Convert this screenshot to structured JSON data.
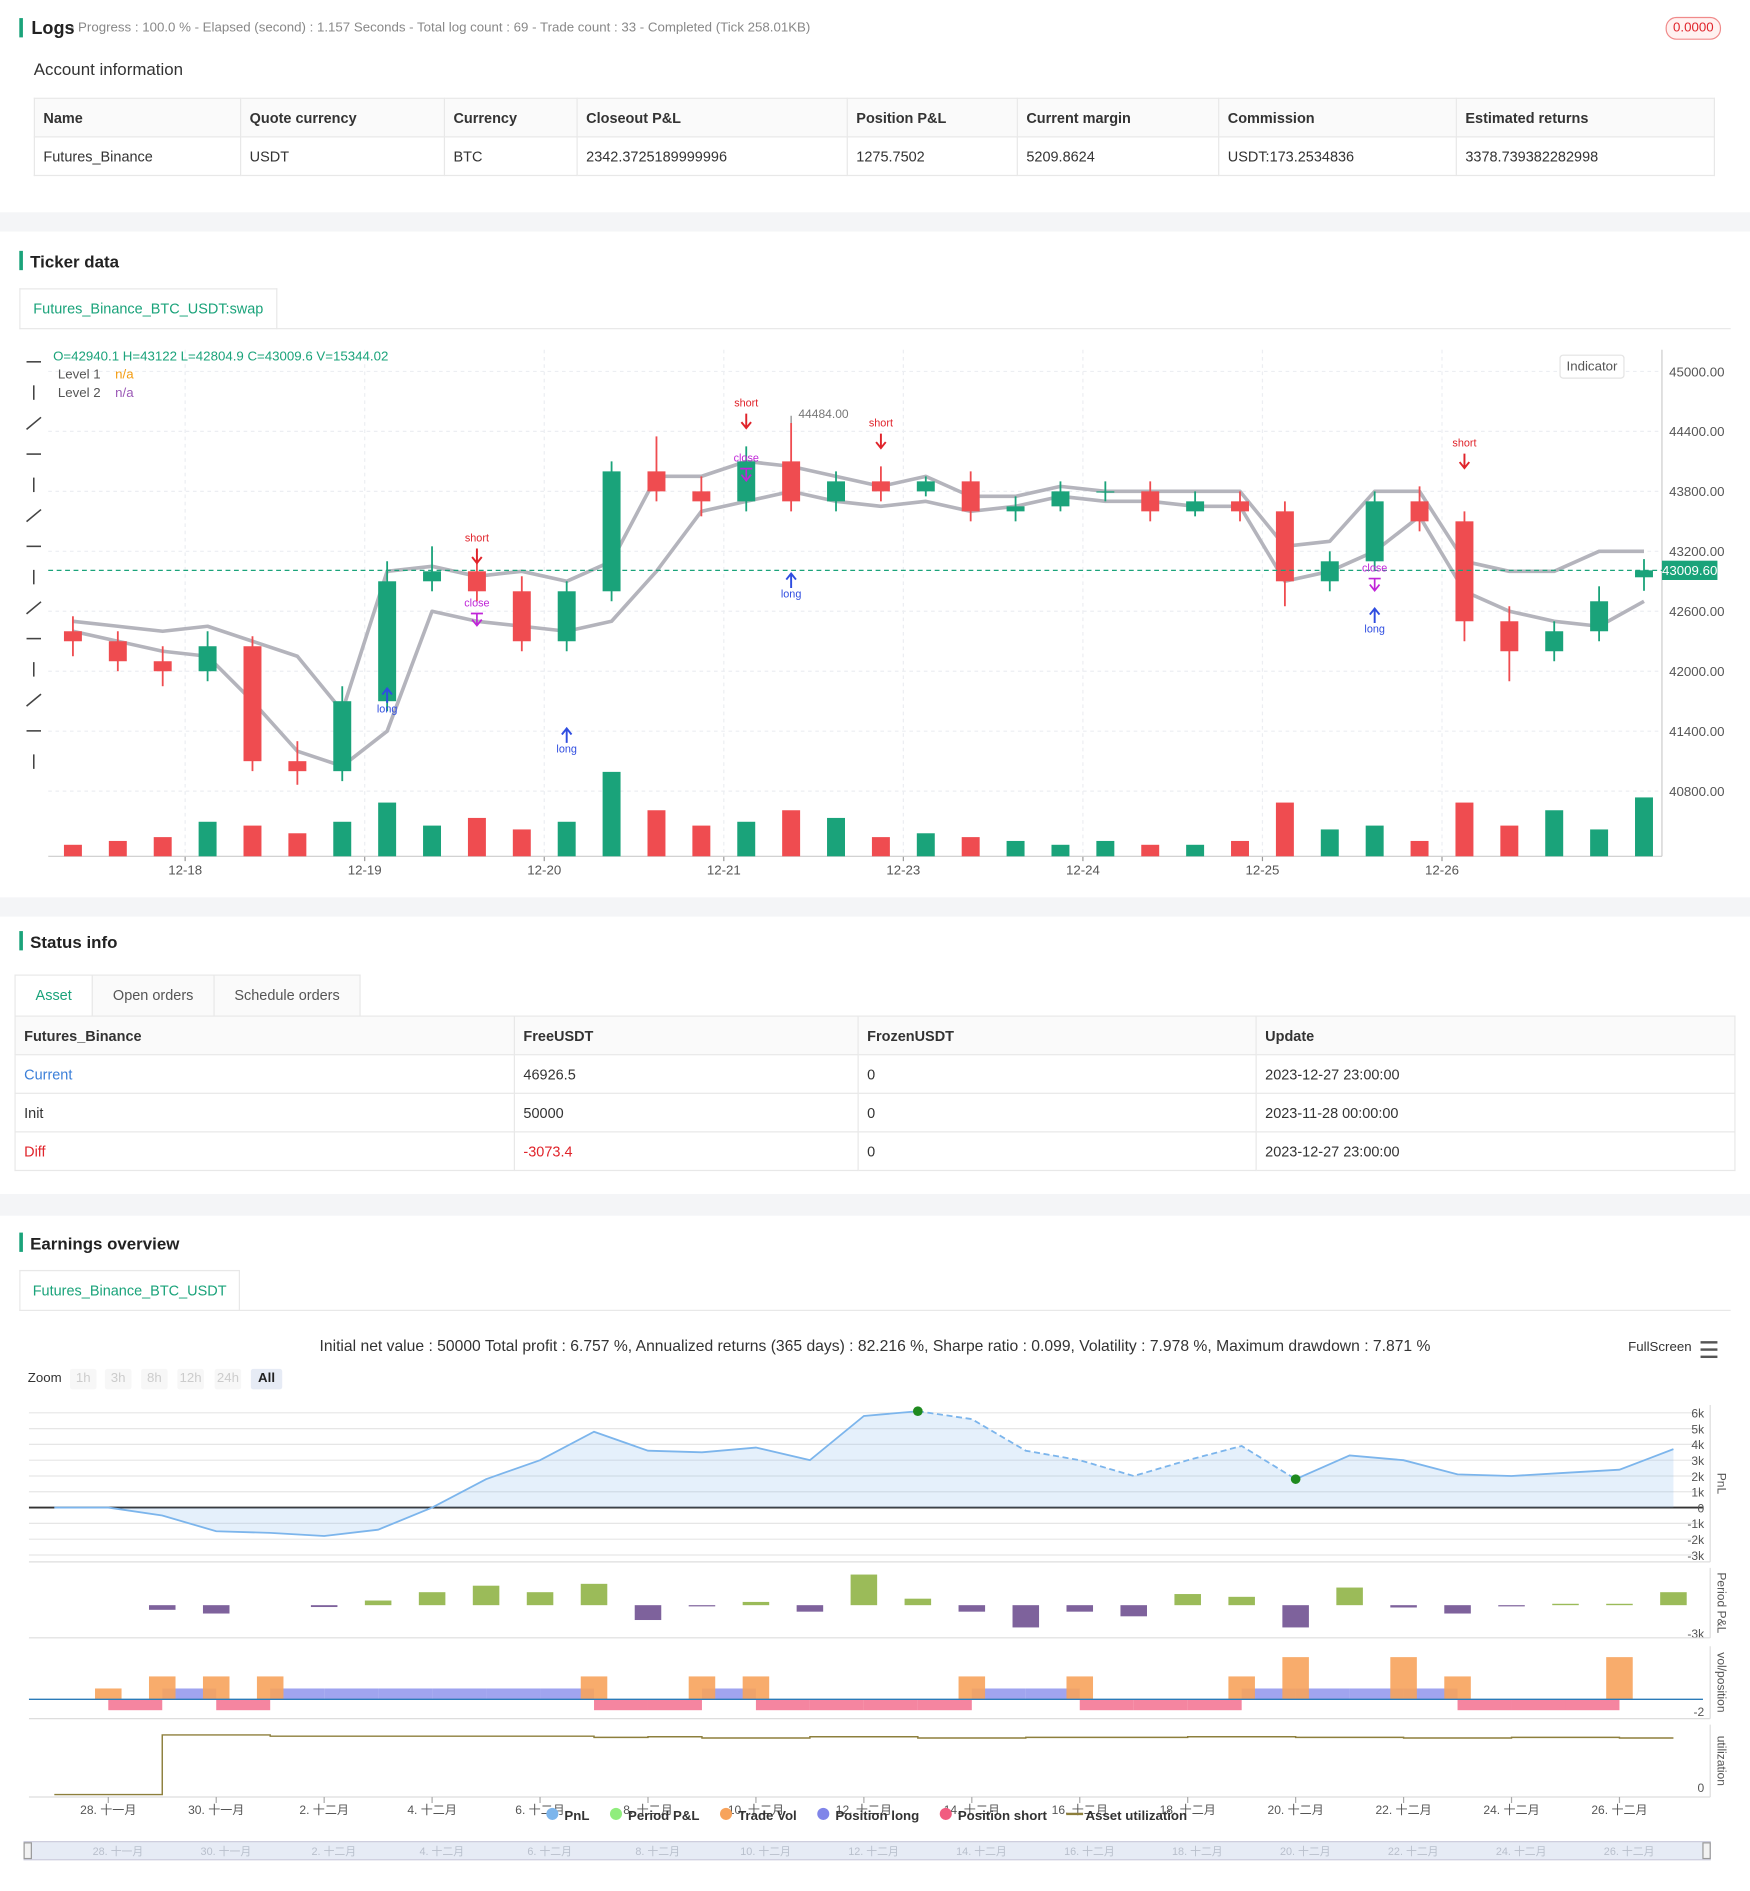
{
  "logs": {
    "title": "Logs",
    "summary": "- Progress : 100.0 % - Elapsed (second) : 1.157  Seconds - Total log count : 69 - Trade count : 33 - Completed (Tick 258.01KB)",
    "badge": "0.0000"
  },
  "account": {
    "title": "Account information",
    "columns": [
      "Name",
      "Quote currency",
      "Currency",
      "Closeout P&L",
      "Position P&L",
      "Current margin",
      "Commission",
      "Estimated returns"
    ],
    "rows": [
      [
        "Futures_Binance",
        "USDT",
        "BTC",
        "2342.3725189999996",
        "1275.7502",
        "5209.8624",
        "USDT:173.2534836",
        "3378.739382282998"
      ]
    ]
  },
  "ticker": {
    "title": "Ticker data",
    "tab": "Futures_Binance_BTC_USDT:swap",
    "ohlc": "O=42940.1 H=43122 L=42804.9 C=43009.6 V=15344.02",
    "legend": [
      {
        "name": "Level 1",
        "value": "n/a",
        "color": "#f39c12"
      },
      {
        "name": "Level 2",
        "value": "n/a",
        "color": "#9b59b6"
      }
    ],
    "indicator": "Indicator",
    "chart_data": {
      "type": "candlestick",
      "xlim": [
        -0.55,
        35.4
      ],
      "xticks": [
        {
          "value": 2.5,
          "label": "12-18"
        },
        {
          "value": 6.5,
          "label": "12-19"
        },
        {
          "value": 10.5,
          "label": "12-20"
        },
        {
          "value": 14.5,
          "label": "12-21"
        },
        {
          "value": 18.5,
          "label": "12-23"
        },
        {
          "value": 22.5,
          "label": "12-24"
        },
        {
          "value": 26.5,
          "label": "12-25"
        },
        {
          "value": 30.5,
          "label": "12-26"
        }
      ],
      "ylim": [
        40148,
        45217
      ],
      "yticks": [
        {
          "value": 40800,
          "label": "40800.00"
        },
        {
          "value": 41400,
          "label": "41400.00"
        },
        {
          "value": 42000,
          "label": "42000.00"
        },
        {
          "value": 42600,
          "label": "42600.00"
        },
        {
          "value": 43200,
          "label": "43200.00"
        },
        {
          "value": 43800,
          "label": "43800.00"
        },
        {
          "value": 44400,
          "label": "44400.00"
        },
        {
          "value": 45000,
          "label": "45000.00"
        }
      ],
      "up_color": "#1aa37a",
      "down_color": "#ef4c50",
      "grid": true,
      "opens": [
        42400,
        42300,
        42100,
        42000,
        42250,
        41100,
        41000,
        41700,
        42900,
        43000,
        42800,
        42300,
        42800,
        44000,
        43800,
        43700,
        44100,
        43700,
        43900,
        43800,
        43900,
        43600,
        43650,
        43800,
        43800,
        43600,
        43700,
        43600,
        42900,
        43100,
        43700,
        43500,
        42500,
        42200,
        42400,
        42940.1
      ],
      "highs": [
        42550,
        42400,
        42250,
        42400,
        42350,
        41300,
        41850,
        43100,
        43250,
        43150,
        42950,
        42900,
        44100,
        44350,
        43950,
        44250,
        44484,
        44000,
        44050,
        43950,
        44000,
        43750,
        43900,
        43900,
        43900,
        43800,
        43800,
        43700,
        43200,
        43800,
        43850,
        43600,
        42650,
        42500,
        42850,
        43122
      ],
      "lows": [
        42150,
        42000,
        41850,
        41900,
        41000,
        40863.8,
        40900,
        41600,
        42800,
        42700,
        42200,
        42200,
        42700,
        43700,
        43550,
        43600,
        43600,
        43600,
        43700,
        43750,
        43500,
        43500,
        43600,
        43700,
        43500,
        43550,
        43500,
        42650,
        42800,
        43000,
        43400,
        42300,
        41900,
        42100,
        42300,
        42804.9
      ],
      "closes": [
        42300,
        42100,
        42000,
        42250,
        41100,
        41000,
        41700,
        42900,
        43000,
        42800,
        42300,
        42800,
        44000,
        43800,
        43700,
        44100,
        43700,
        43900,
        43800,
        43900,
        43600,
        43650,
        43800,
        43800,
        43600,
        43700,
        43600,
        42900,
        43100,
        43700,
        43500,
        42500,
        42200,
        42400,
        42700,
        43009.6
      ],
      "volumes": [
        3000,
        4000,
        5000,
        9000,
        8000,
        6000,
        9000,
        14000,
        8000,
        10000,
        7000,
        9000,
        22000,
        12000,
        8000,
        9000,
        12000,
        10000,
        5000,
        6000,
        5000,
        4000,
        3000,
        4000,
        3000,
        3000,
        4000,
        14000,
        7000,
        8000,
        4000,
        14000,
        8000,
        12000,
        7000,
        15344.02
      ],
      "levels": [
        {
          "name": "Level 1",
          "color": "#b4b4bc",
          "values": [
            42500,
            42450,
            42400,
            42450,
            42300,
            42150,
            41600,
            43000,
            43050,
            42950,
            43000,
            42900,
            43100,
            43950,
            43950,
            44100,
            44050,
            43950,
            43850,
            43950,
            43750,
            43750,
            43850,
            43800,
            43800,
            43800,
            43800,
            43250,
            43300,
            43800,
            43800,
            43100,
            43000,
            43000,
            43200,
            43200
          ]
        },
        {
          "name": "Level 2",
          "color": "#b4b4bc",
          "values": [
            42400,
            42300,
            42200,
            42150,
            41700,
            41200,
            41050,
            41400,
            42600,
            42500,
            42450,
            42400,
            42500,
            43000,
            43600,
            43700,
            43800,
            43700,
            43650,
            43700,
            43600,
            43650,
            43750,
            43700,
            43700,
            43650,
            43650,
            42900,
            43000,
            43200,
            43550,
            42800,
            42600,
            42500,
            42450,
            42700
          ]
        }
      ],
      "last_label": "43009.60",
      "max_label": "44484.00",
      "signals": [
        {
          "text": "short",
          "index": 9,
          "price": 43300,
          "color": "#e0242b"
        },
        {
          "text": "short",
          "index": 15,
          "price": 44650,
          "color": "#e0242b"
        },
        {
          "text": "short",
          "index": 18,
          "price": 44450,
          "color": "#e0242b"
        },
        {
          "text": "short",
          "index": 31,
          "price": 44250,
          "color": "#e0242b"
        },
        {
          "text": "long",
          "index": 7,
          "price": 41900,
          "color": "#2f4de0"
        },
        {
          "text": "long",
          "index": 11,
          "price": 41500,
          "color": "#2f4de0"
        },
        {
          "text": "long",
          "index": 16,
          "price": 43050,
          "color": "#2f4de0"
        },
        {
          "text": "long",
          "index": 29,
          "price": 42700,
          "color": "#2f4de0"
        },
        {
          "text": "close",
          "index": 9,
          "price": 42650,
          "color": "#c025d8"
        },
        {
          "text": "close",
          "index": 15,
          "price": 44100,
          "color": "#c025d8"
        },
        {
          "text": "close",
          "index": 29,
          "price": 43000,
          "color": "#c025d8"
        }
      ]
    }
  },
  "status": {
    "title": "Status info",
    "tabs": [
      "Asset",
      "Open orders",
      "Schedule orders"
    ],
    "columns": [
      "Futures_Binance",
      "FreeUSDT",
      "FrozenUSDT",
      "Update"
    ],
    "rows": [
      [
        "Current",
        "46926.5",
        "0",
        "2023-12-27 23:00:00"
      ],
      [
        "Init",
        "50000",
        "0",
        "2023-11-28 00:00:00"
      ],
      [
        "Diff",
        "-3073.4",
        "0",
        "2023-12-27 23:00:00"
      ]
    ]
  },
  "earnings": {
    "title": "Earnings overview",
    "tab": "Futures_Binance_BTC_USDT",
    "summary": "Initial net value : 50000 Total profit : 6.757 %, Annualized returns (365 days) : 82.216 %, Sharpe ratio : 0.099, Volatility : 7.978 %, Maximum drawdown : 7.871 %",
    "fullscreen": "FullScreen",
    "zoom_label": "Zoom",
    "zoom_buttons": [
      "1h",
      "3h",
      "8h",
      "12h",
      "24h",
      "All"
    ],
    "chart_data": {
      "type": "multi-panel",
      "xlim": [
        -0.47,
        30.1
      ],
      "xticks": [
        {
          "value": 1,
          "label": "28. 十一月"
        },
        {
          "value": 3,
          "label": "30. 十一月"
        },
        {
          "value": 5,
          "label": "2. 十二月"
        },
        {
          "value": 7,
          "label": "4. 十二月"
        },
        {
          "value": 9,
          "label": "6. 十二月"
        },
        {
          "value": 11,
          "label": "8. 十二月"
        },
        {
          "value": 13,
          "label": "10. 十二月"
        },
        {
          "value": 15,
          "label": "12. 十二月"
        },
        {
          "value": 17,
          "label": "14. 十二月"
        },
        {
          "value": 19,
          "label": "16. 十二月"
        },
        {
          "value": 21,
          "label": "18. 十二月"
        },
        {
          "value": 23,
          "label": "20. 十二月"
        },
        {
          "value": 25,
          "label": "22. 十二月"
        },
        {
          "value": 27,
          "label": "24. 十二月"
        },
        {
          "value": 29,
          "label": "26. 十二月"
        }
      ],
      "axis_titles": [
        "PnL",
        "Period P&L",
        "vol/position",
        "utilization"
      ],
      "pnl": {
        "name": "PnL",
        "color": "#7cb5ec",
        "ylim": [
          -3435,
          6490
        ],
        "yticks": [
          {
            "value": 6000,
            "label": "6k"
          },
          {
            "value": 5000,
            "label": "5k"
          },
          {
            "value": 4000,
            "label": "4k"
          },
          {
            "value": 3000,
            "label": "3k"
          },
          {
            "value": 2000,
            "label": "2k"
          },
          {
            "value": 1000,
            "label": "1k"
          },
          0,
          {
            "value": -1000,
            "label": "-1k"
          },
          {
            "value": -2000,
            "label": "-2k"
          },
          {
            "value": -3000,
            "label": "-3k"
          }
        ],
        "x": [
          0,
          1,
          2,
          3,
          4,
          5,
          6,
          7,
          8,
          9,
          10,
          11,
          12,
          13,
          14,
          15,
          16,
          17,
          18,
          19,
          20,
          21,
          22,
          23,
          24,
          25,
          26,
          27,
          28,
          29,
          30
        ],
        "values": [
          0,
          0,
          -500,
          -1500,
          -1600,
          -1800,
          -1400,
          0,
          1800,
          3000,
          4800,
          3600,
          3500,
          3800,
          3000,
          5800,
          6100,
          5600,
          3600,
          3000,
          2000,
          3000,
          3900,
          1800,
          3300,
          3000,
          2100,
          2000,
          2200,
          2400,
          3700
        ],
        "drawdown": [
          16,
          23
        ],
        "marker_color": "#1f8a1f"
      },
      "period": {
        "name": "Period P&L",
        "color": "#90ed7d",
        "positive_color": "#9bbb59",
        "negative_color": "#7e629c",
        "ylim": [
          -3520,
          4020
        ],
        "yticks": [
          {
            "value": -3000,
            "label": "-3k"
          }
        ],
        "x": [
          2,
          3,
          5,
          6,
          7,
          8,
          9,
          10,
          11,
          12,
          13,
          14,
          15,
          16,
          17,
          18,
          19,
          20,
          21,
          22,
          23,
          24,
          25,
          26,
          27,
          28,
          29,
          30
        ],
        "values": [
          -500,
          -900,
          -200,
          500,
          1400,
          2100,
          1400,
          2300,
          -1600,
          -100,
          350,
          -700,
          3300,
          700,
          -700,
          -2400,
          -700,
          -1200,
          1200,
          900,
          -2400,
          1900,
          -250,
          -900,
          -100,
          150,
          150,
          1400
        ]
      },
      "volume": {
        "ylim": [
          -3.2,
          8.8
        ],
        "yticks": [
          -2
        ],
        "trade_vol": {
          "name": "Trade Vol",
          "color": "#f7a35c",
          "x": [
            1,
            2,
            3,
            4,
            10,
            12,
            13,
            17,
            19,
            22,
            23,
            25,
            26,
            29
          ],
          "values": [
            1.8,
            3.8,
            3.8,
            3.8,
            3.8,
            3.8,
            3.8,
            3.8,
            3.8,
            3.8,
            7,
            7,
            3.8,
            7
          ]
        },
        "long": {
          "name": "Position long",
          "color": "#8085e9",
          "x": [
            0,
            1,
            2,
            3,
            4,
            5,
            6,
            7,
            8,
            9,
            10,
            11,
            12,
            13,
            14,
            15,
            16,
            17,
            18,
            19,
            20,
            21,
            22,
            23,
            24,
            25,
            26,
            27,
            28,
            29
          ],
          "values": [
            0,
            0,
            1.8,
            0,
            1.8,
            1.8,
            1.8,
            1.8,
            1.8,
            1.8,
            0,
            0,
            1.8,
            0,
            0,
            0,
            0,
            1.8,
            1.8,
            0,
            0,
            0,
            1.8,
            1.8,
            1.8,
            1.8,
            0,
            0,
            0,
            0
          ]
        },
        "short": {
          "name": "Position short",
          "color": "#f15c80",
          "x": [
            0,
            1,
            2,
            3,
            4,
            5,
            6,
            7,
            8,
            9,
            10,
            11,
            12,
            13,
            14,
            15,
            16,
            17,
            18,
            19,
            20,
            21,
            22,
            23,
            24,
            25,
            26,
            27,
            28,
            29
          ],
          "values": [
            0,
            -1.8,
            0,
            -1.8,
            0,
            0,
            0,
            0,
            0,
            0,
            -1.8,
            -1.8,
            0,
            -1.8,
            -1.8,
            -1.8,
            -1.8,
            0,
            0,
            -1.8,
            -1.8,
            -1.8,
            0,
            0,
            0,
            0,
            -1.8,
            -1.8,
            -1.8,
            0
          ]
        }
      },
      "utilization": {
        "name": "Asset utilization",
        "color": "#8d7f3c",
        "ylim": [
          -0.04,
          1.137
        ],
        "yticks": [
          0
        ],
        "x": [
          0,
          1,
          2,
          3,
          4,
          5,
          6,
          7,
          8,
          9,
          10,
          11,
          12,
          13,
          14,
          15,
          16,
          17,
          18,
          19,
          20,
          21,
          22,
          23,
          24,
          25,
          26,
          27,
          28,
          29
        ],
        "values": [
          0,
          0,
          0.97,
          0.97,
          0.95,
          0.95,
          0.95,
          0.95,
          0.95,
          0.95,
          0.93,
          0.94,
          0.92,
          0.92,
          0.94,
          0.94,
          0.92,
          0.92,
          0.93,
          0.93,
          0.93,
          0.94,
          0.94,
          0.93,
          0.93,
          0.92,
          0.92,
          0.93,
          0.93,
          0.92
        ]
      }
    }
  }
}
